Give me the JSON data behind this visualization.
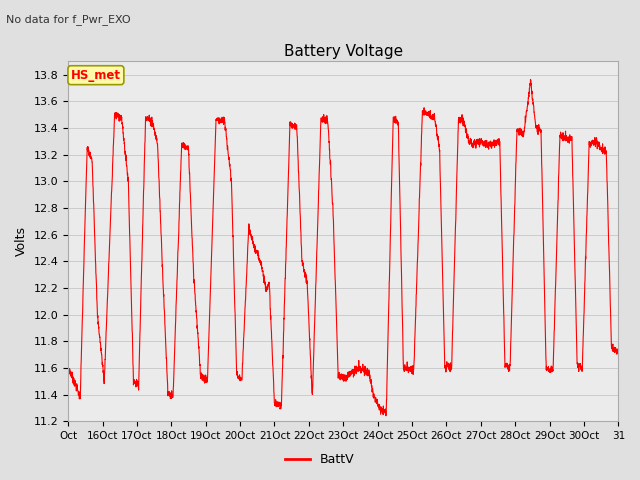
{
  "title": "Battery Voltage",
  "subtitle": "No data for f_Pwr_EXO",
  "ylabel": "Volts",
  "legend_label": "BattV",
  "legend_label2": "HS_met",
  "ylim": [
    11.2,
    13.9
  ],
  "yticks": [
    11.2,
    11.4,
    11.6,
    11.8,
    12.0,
    12.2,
    12.4,
    12.6,
    12.8,
    13.0,
    13.2,
    13.4,
    13.6,
    13.8
  ],
  "line_color": "#FF0000",
  "bg_color": "#E0E0E0",
  "plot_bg": "#EBEBEB",
  "xtick_labels": [
    "Oct",
    "16Oct",
    "17Oct",
    "18Oct",
    "19Oct",
    "20Oct",
    "21Oct",
    "22Oct",
    "23Oct",
    "24Oct",
    "25Oct",
    "26Oct",
    "27Oct",
    "28Oct",
    "29Oct",
    "30Oct",
    "31"
  ],
  "xtick_positions": [
    15,
    16,
    17,
    18,
    19,
    20,
    21,
    22,
    23,
    24,
    25,
    26,
    27,
    28,
    29,
    30,
    31
  ],
  "keypoints_x": [
    15.0,
    15.1,
    15.35,
    15.55,
    15.7,
    15.85,
    16.05,
    16.35,
    16.55,
    16.75,
    16.9,
    17.05,
    17.25,
    17.45,
    17.6,
    17.75,
    17.9,
    18.05,
    18.3,
    18.5,
    18.65,
    18.85,
    19.05,
    19.3,
    19.55,
    19.75,
    19.9,
    20.05,
    20.25,
    20.45,
    20.6,
    20.75,
    20.85,
    21.0,
    21.2,
    21.45,
    21.65,
    21.8,
    21.95,
    22.1,
    22.35,
    22.55,
    22.7,
    22.85,
    23.0,
    23.2,
    23.45,
    23.6,
    23.75,
    23.9,
    24.05,
    24.25,
    24.45,
    24.6,
    24.75,
    25.05,
    25.3,
    25.5,
    25.65,
    25.8,
    25.95,
    26.15,
    26.35,
    26.5,
    26.65,
    26.8,
    27.0,
    27.2,
    27.4,
    27.55,
    27.7,
    27.85,
    28.05,
    28.25,
    28.45,
    28.6,
    28.75,
    28.9,
    29.1,
    29.3,
    29.5,
    29.65,
    29.8,
    29.95,
    30.15,
    30.35,
    30.5,
    30.65,
    30.8,
    31.0
  ],
  "keypoints_y": [
    11.6,
    11.55,
    11.38,
    13.25,
    13.15,
    12.0,
    11.5,
    13.5,
    13.48,
    13.0,
    11.5,
    11.48,
    13.48,
    13.45,
    13.28,
    12.3,
    11.42,
    11.38,
    13.28,
    13.24,
    12.3,
    11.55,
    11.5,
    13.47,
    13.45,
    13.0,
    11.55,
    11.5,
    12.65,
    12.48,
    12.4,
    12.2,
    12.22,
    11.33,
    11.32,
    13.43,
    13.4,
    12.4,
    12.24,
    11.37,
    13.48,
    13.45,
    12.8,
    11.55,
    11.52,
    11.56,
    11.6,
    11.58,
    11.56,
    11.38,
    11.3,
    11.27,
    13.48,
    13.44,
    11.6,
    11.58,
    13.52,
    13.5,
    13.48,
    13.25,
    11.62,
    11.6,
    13.47,
    13.45,
    13.3,
    13.28,
    13.3,
    13.27,
    13.28,
    13.3,
    11.62,
    11.6,
    13.38,
    13.36,
    13.75,
    13.4,
    13.38,
    11.6,
    11.58,
    13.35,
    13.32,
    13.32,
    11.62,
    11.6,
    13.28,
    13.3,
    13.25,
    13.22,
    11.75,
    11.72
  ]
}
